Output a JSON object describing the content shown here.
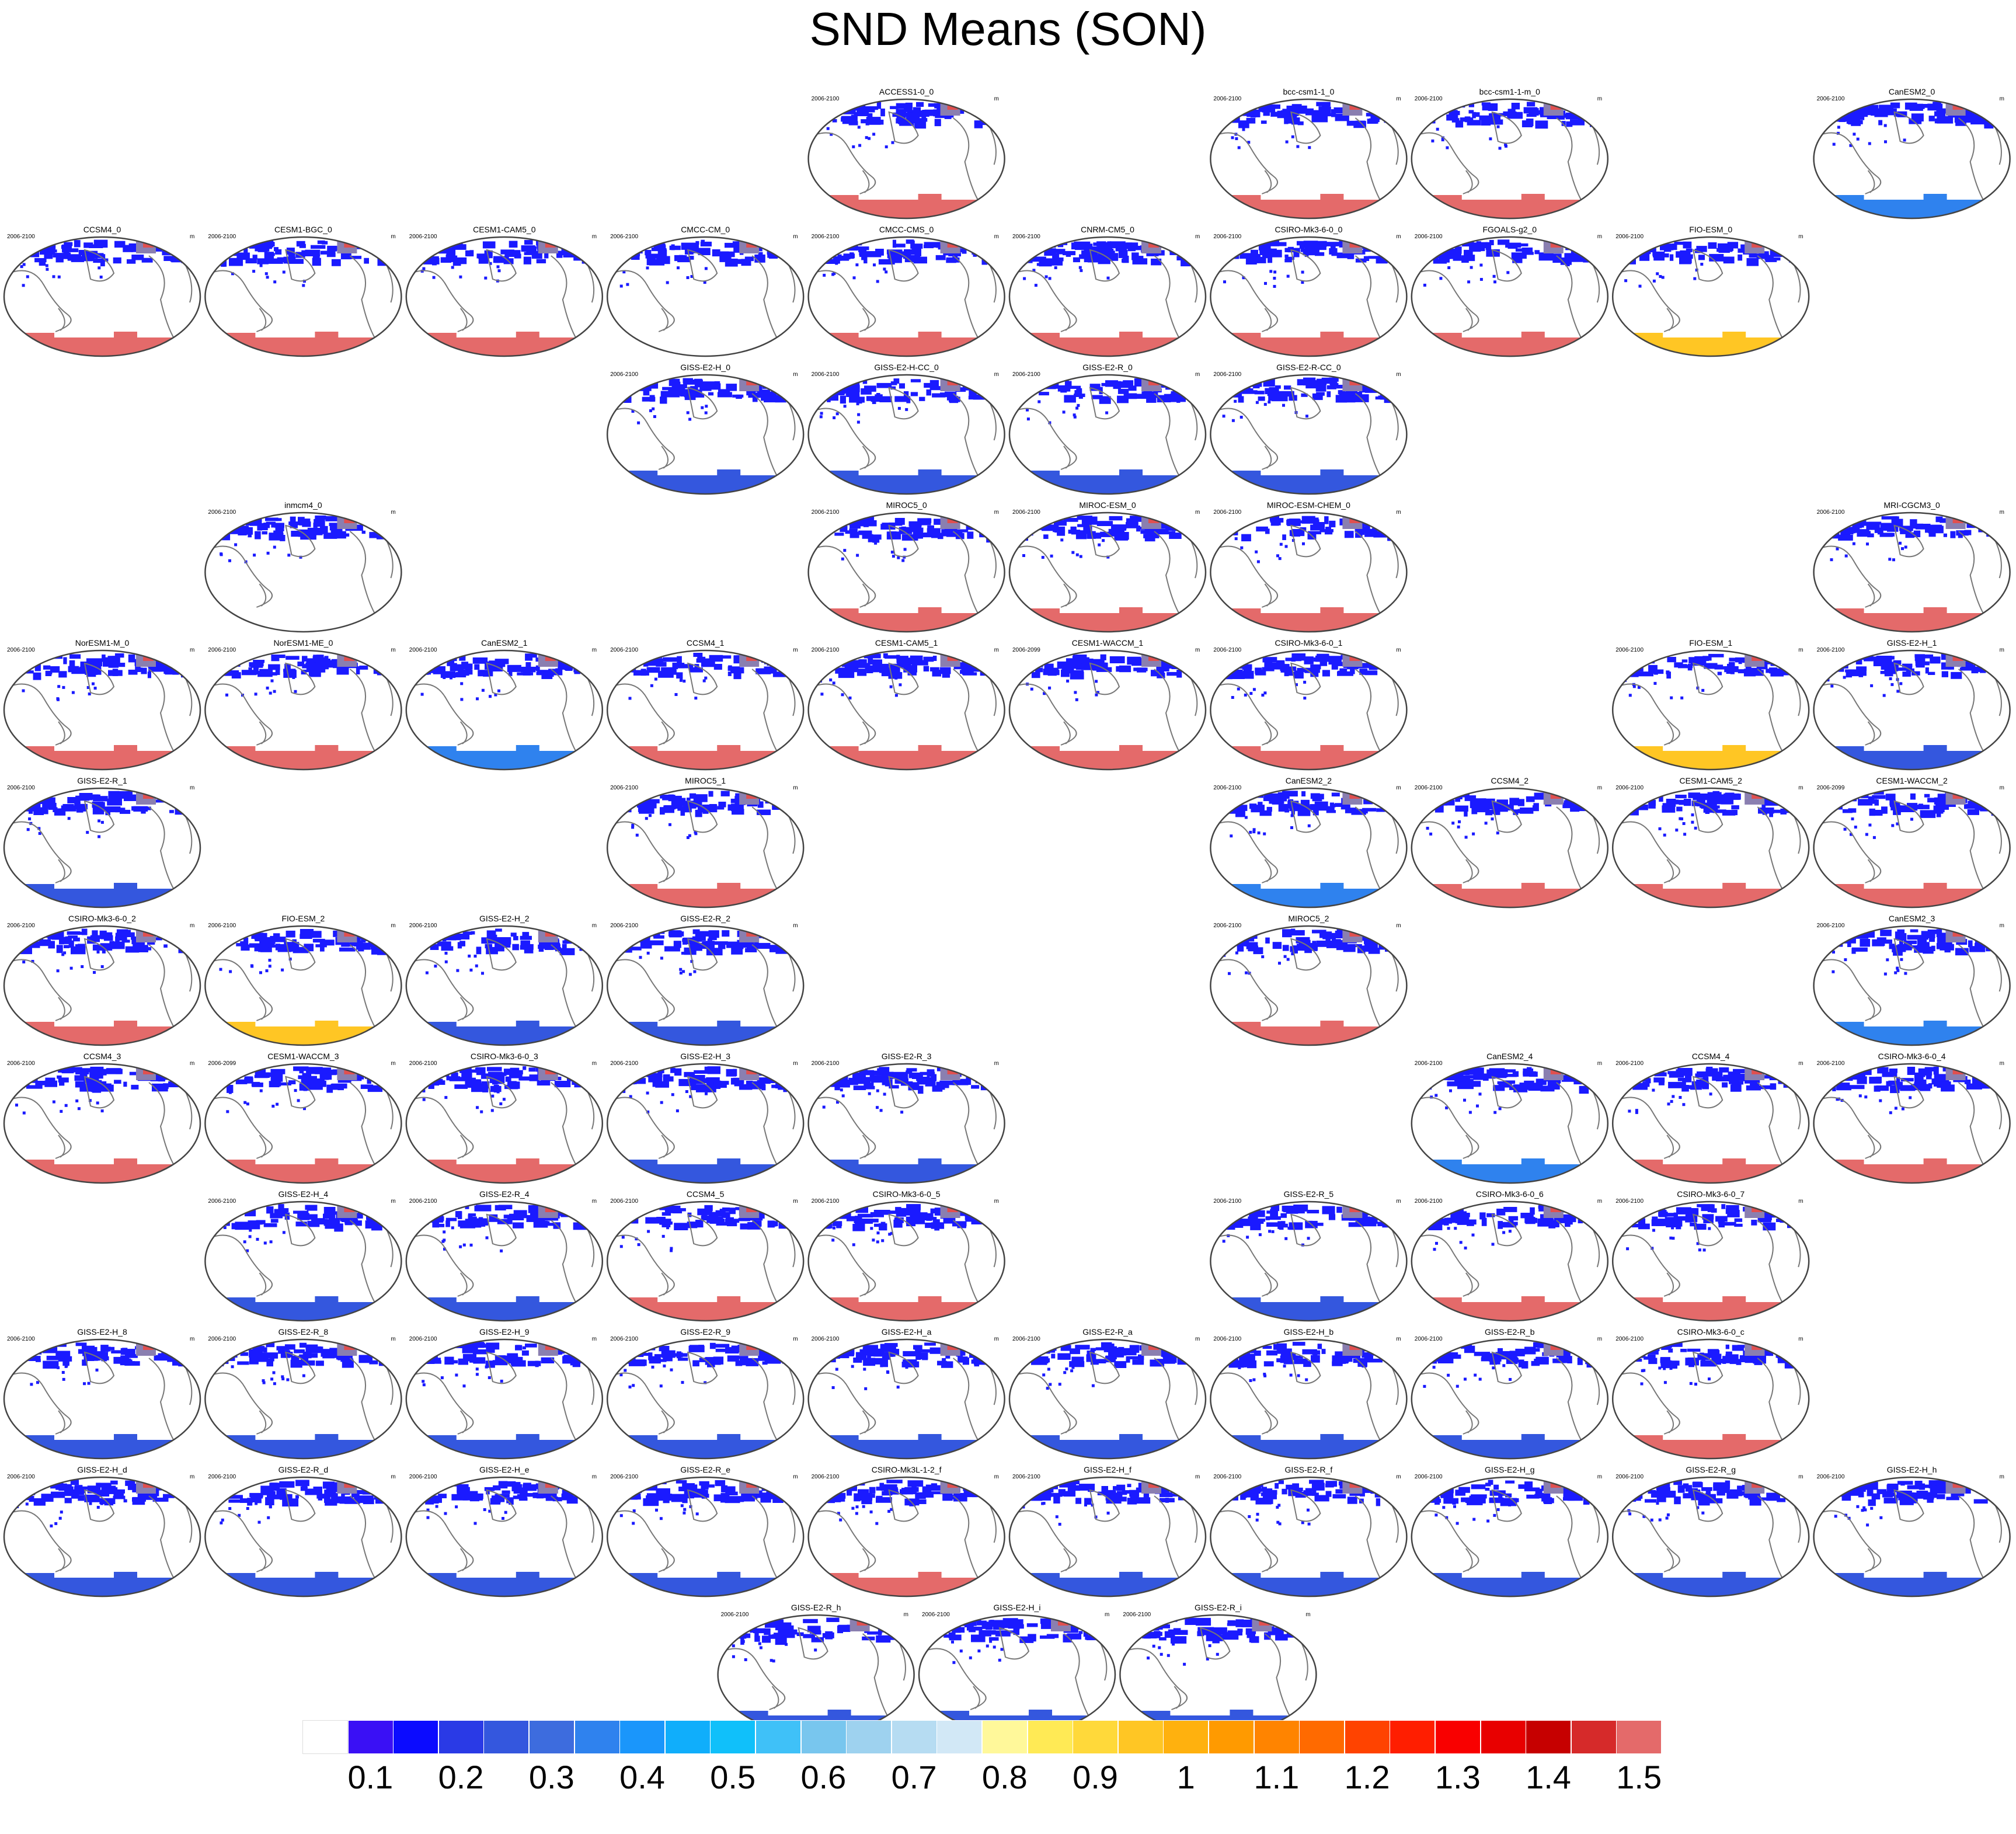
{
  "title": "SND Means (SON)",
  "panel_period_default": "2006-2100",
  "panel_unit": "m",
  "colors": {
    "outline": "#444444",
    "coast": "#777777",
    "snow_north": "#1a1aff"
  },
  "colorbar": {
    "colors": [
      "#ffffff",
      "#3a10f5",
      "#0b0bff",
      "#2a3ae6",
      "#3457de",
      "#3d6cde",
      "#2f82ee",
      "#1a96fb",
      "#10aefb",
      "#10c0fa",
      "#3fc1f8",
      "#78c6ee",
      "#9ed2ef",
      "#b6dcf2",
      "#d2e8f6",
      "#fff89a",
      "#ffea55",
      "#ffd93a",
      "#ffc624",
      "#ffb10e",
      "#ff9a00",
      "#ff8400",
      "#ff6a00",
      "#ff4300",
      "#ff1e00",
      "#f90000",
      "#e80000",
      "#c60000",
      "#d62a2a",
      "#e46a6a"
    ],
    "labels": [
      "0.1",
      "0.2",
      "0.3",
      "0.4",
      "0.5",
      "0.6",
      "0.7",
      "0.8",
      "0.9",
      "1",
      "1.1",
      "1.2",
      "1.3",
      "1.4",
      "1.5"
    ]
  },
  "panels": [
    {
      "name": "ACCESS1-0_0",
      "period": "2006-2100",
      "south": "#e46a6a"
    },
    {
      "name": "bcc-csm1-1_0",
      "period": "2006-2100",
      "south": "#e46a6a"
    },
    {
      "name": "bcc-csm1-1-m_0",
      "period": "2006-2100",
      "south": "#e46a6a"
    },
    {
      "name": "CanESM2_0",
      "period": "2006-2100",
      "south": "#2f82ee"
    },
    {
      "name": "CCSM4_0",
      "period": "2006-2100",
      "south": "#e46a6a"
    },
    {
      "name": "CESM1-BGC_0",
      "period": "2006-2100",
      "south": "#e46a6a"
    },
    {
      "name": "CESM1-CAM5_0",
      "period": "2006-2100",
      "south": "#e46a6a"
    },
    {
      "name": "CMCC-CM_0",
      "period": "2006-2100",
      "south": "#ffffff"
    },
    {
      "name": "CMCC-CMS_0",
      "period": "2006-2100",
      "south": "#e46a6a"
    },
    {
      "name": "CNRM-CM5_0",
      "period": "2006-2100",
      "south": "#e46a6a"
    },
    {
      "name": "CSIRO-Mk3-6-0_0",
      "period": "2006-2100",
      "south": "#e46a6a"
    },
    {
      "name": "FGOALS-g2_0",
      "period": "2006-2100",
      "south": "#e46a6a"
    },
    {
      "name": "FIO-ESM_0",
      "period": "2006-2100",
      "south": "#ffc624"
    },
    {
      "name": "GISS-E2-H_0",
      "period": "2006-2100",
      "south": "#3457de"
    },
    {
      "name": "GISS-E2-H-CC_0",
      "period": "2006-2100",
      "south": "#3457de"
    },
    {
      "name": "GISS-E2-R_0",
      "period": "2006-2100",
      "south": "#3457de"
    },
    {
      "name": "GISS-E2-R-CC_0",
      "period": "2006-2100",
      "south": "#3457de"
    },
    {
      "name": "inmcm4_0",
      "period": "2006-2100",
      "south": "#ffffff"
    },
    {
      "name": "MIROC5_0",
      "period": "2006-2100",
      "south": "#e46a6a"
    },
    {
      "name": "MIROC-ESM_0",
      "period": "2006-2100",
      "south": "#e46a6a"
    },
    {
      "name": "MIROC-ESM-CHEM_0",
      "period": "2006-2100",
      "south": "#e46a6a"
    },
    {
      "name": "MRI-CGCM3_0",
      "period": "2006-2100",
      "south": "#e46a6a"
    },
    {
      "name": "NorESM1-M_0",
      "period": "2006-2100",
      "south": "#e46a6a"
    },
    {
      "name": "NorESM1-ME_0",
      "period": "2006-2100",
      "south": "#e46a6a"
    },
    {
      "name": "CanESM2_1",
      "period": "2006-2100",
      "south": "#2f82ee"
    },
    {
      "name": "CCSM4_1",
      "period": "2006-2100",
      "south": "#e46a6a"
    },
    {
      "name": "CESM1-CAM5_1",
      "period": "2006-2100",
      "south": "#e46a6a"
    },
    {
      "name": "CESM1-WACCM_1",
      "period": "2006-2099",
      "south": "#e46a6a"
    },
    {
      "name": "CSIRO-Mk3-6-0_1",
      "period": "2006-2100",
      "south": "#e46a6a"
    },
    {
      "name": "FIO-ESM_1",
      "period": "2006-2100",
      "south": "#ffc624"
    },
    {
      "name": "GISS-E2-H_1",
      "period": "2006-2100",
      "south": "#3457de"
    },
    {
      "name": "GISS-E2-R_1",
      "period": "2006-2100",
      "south": "#3457de"
    },
    {
      "name": "MIROC5_1",
      "period": "2006-2100",
      "south": "#e46a6a"
    },
    {
      "name": "CanESM2_2",
      "period": "2006-2100",
      "south": "#2f82ee"
    },
    {
      "name": "CCSM4_2",
      "period": "2006-2100",
      "south": "#e46a6a"
    },
    {
      "name": "CESM1-CAM5_2",
      "period": "2006-2100",
      "south": "#e46a6a"
    },
    {
      "name": "CESM1-WACCM_2",
      "period": "2006-2099",
      "south": "#e46a6a"
    },
    {
      "name": "CSIRO-Mk3-6-0_2",
      "period": "2006-2100",
      "south": "#e46a6a"
    },
    {
      "name": "FIO-ESM_2",
      "period": "2006-2100",
      "south": "#ffc624"
    },
    {
      "name": "GISS-E2-H_2",
      "period": "2006-2100",
      "south": "#3457de"
    },
    {
      "name": "GISS-E2-R_2",
      "period": "2006-2100",
      "south": "#3457de"
    },
    {
      "name": "MIROC5_2",
      "period": "2006-2100",
      "south": "#e46a6a"
    },
    {
      "name": "CanESM2_3",
      "period": "2006-2100",
      "south": "#2f82ee"
    },
    {
      "name": "CCSM4_3",
      "period": "2006-2100",
      "south": "#e46a6a"
    },
    {
      "name": "CESM1-WACCM_3",
      "period": "2006-2099",
      "south": "#e46a6a"
    },
    {
      "name": "CSIRO-Mk3-6-0_3",
      "period": "2006-2100",
      "south": "#e46a6a"
    },
    {
      "name": "GISS-E2-H_3",
      "period": "2006-2100",
      "south": "#3457de"
    },
    {
      "name": "GISS-E2-R_3",
      "period": "2006-2100",
      "south": "#3457de"
    },
    {
      "name": "CanESM2_4",
      "period": "2006-2100",
      "south": "#2f82ee"
    },
    {
      "name": "CCSM4_4",
      "period": "2006-2100",
      "south": "#e46a6a"
    },
    {
      "name": "CSIRO-Mk3-6-0_4",
      "period": "2006-2100",
      "south": "#e46a6a"
    },
    {
      "name": "GISS-E2-H_4",
      "period": "2006-2100",
      "south": "#3457de"
    },
    {
      "name": "GISS-E2-R_4",
      "period": "2006-2100",
      "south": "#3457de"
    },
    {
      "name": "CCSM4_5",
      "period": "2006-2100",
      "south": "#e46a6a"
    },
    {
      "name": "CSIRO-Mk3-6-0_5",
      "period": "2006-2100",
      "south": "#e46a6a"
    },
    {
      "name": "GISS-E2-R_5",
      "period": "2006-2100",
      "south": "#3457de"
    },
    {
      "name": "CSIRO-Mk3-6-0_6",
      "period": "2006-2100",
      "south": "#e46a6a"
    },
    {
      "name": "CSIRO-Mk3-6-0_7",
      "period": "2006-2100",
      "south": "#e46a6a"
    },
    {
      "name": "GISS-E2-H_8",
      "period": "2006-2100",
      "south": "#3457de"
    },
    {
      "name": "GISS-E2-R_8",
      "period": "2006-2100",
      "south": "#3457de"
    },
    {
      "name": "GISS-E2-H_9",
      "period": "2006-2100",
      "south": "#3457de"
    },
    {
      "name": "GISS-E2-R_9",
      "period": "2006-2100",
      "south": "#3457de"
    },
    {
      "name": "GISS-E2-H_a",
      "period": "2006-2100",
      "south": "#3457de"
    },
    {
      "name": "GISS-E2-R_a",
      "period": "2006-2100",
      "south": "#3457de"
    },
    {
      "name": "GISS-E2-H_b",
      "period": "2006-2100",
      "south": "#3457de"
    },
    {
      "name": "GISS-E2-R_b",
      "period": "2006-2100",
      "south": "#3457de"
    },
    {
      "name": "CSIRO-Mk3-6-0_c",
      "period": "2006-2100",
      "south": "#e46a6a"
    },
    {
      "name": "GISS-E2-H_d",
      "period": "2006-2100",
      "south": "#3457de"
    },
    {
      "name": "GISS-E2-R_d",
      "period": "2006-2100",
      "south": "#3457de"
    },
    {
      "name": "GISS-E2-H_e",
      "period": "2006-2100",
      "south": "#3457de"
    },
    {
      "name": "GISS-E2-R_e",
      "period": "2006-2100",
      "south": "#3457de"
    },
    {
      "name": "CSIRO-Mk3L-1-2_f",
      "period": "2006-2100",
      "south": "#e46a6a"
    },
    {
      "name": "GISS-E2-H_f",
      "period": "2006-2100",
      "south": "#3457de"
    },
    {
      "name": "GISS-E2-R_f",
      "period": "2006-2100",
      "south": "#3457de"
    },
    {
      "name": "GISS-E2-H_g",
      "period": "2006-2100",
      "south": "#3457de"
    },
    {
      "name": "GISS-E2-R_g",
      "period": "2006-2100",
      "south": "#3457de"
    },
    {
      "name": "GISS-E2-H_h",
      "period": "2006-2100",
      "south": "#3457de"
    },
    {
      "name": "GISS-E2-R_h",
      "period": "2006-2100",
      "south": "#3457de"
    },
    {
      "name": "GISS-E2-H_i",
      "period": "2006-2100",
      "south": "#3457de"
    },
    {
      "name": "GISS-E2-R_i",
      "period": "2006-2100",
      "south": "#3457de"
    }
  ]
}
